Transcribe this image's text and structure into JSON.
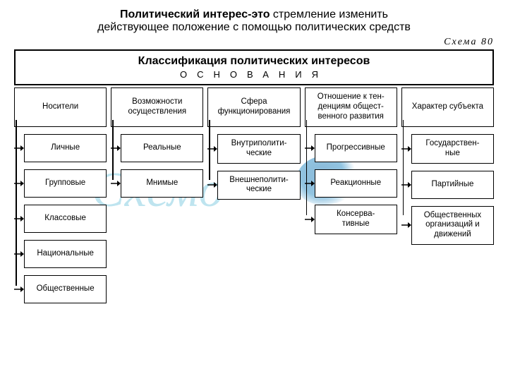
{
  "heading": {
    "bold_prefix": "Политический интерес-это",
    "rest_line1": " стремление изменить",
    "line2": "действующее положение с помощью политических средств"
  },
  "schema_label": "Схема 80",
  "title_box": {
    "main": "Классификация политических интересов",
    "sub": "ОСНОВАНИЯ"
  },
  "columns": [
    {
      "header": "Носители",
      "items": [
        "Личные",
        "Групповые",
        "Классовые",
        "Национальные",
        "Общественные"
      ]
    },
    {
      "header": "Возможности осуществления",
      "items": [
        "Реальные",
        "Мнимые"
      ]
    },
    {
      "header": "Сфера функционирования",
      "items": [
        "Внутриполити-\nческие",
        "Внешнеполити-\nческие"
      ]
    },
    {
      "header": "Отношение к тен-\nденциям общест-\nвенного развития",
      "items": [
        "Прогрессивные",
        "Реакционные",
        "Консерва-\nтивные"
      ]
    },
    {
      "header": "Характер субъекта",
      "items": [
        "Государствен-\nные",
        "Партийные",
        "Общественных организаций и движений"
      ]
    }
  ],
  "styling": {
    "page_bg": "#ffffff",
    "border_color": "#000000",
    "header_fontsize": 11.5,
    "item_fontsize": 11.5,
    "title_fontsize": 16,
    "heading_fontsize": 16,
    "watermark_color": "#48b3d3",
    "splat_color": "#2a7fb8"
  }
}
